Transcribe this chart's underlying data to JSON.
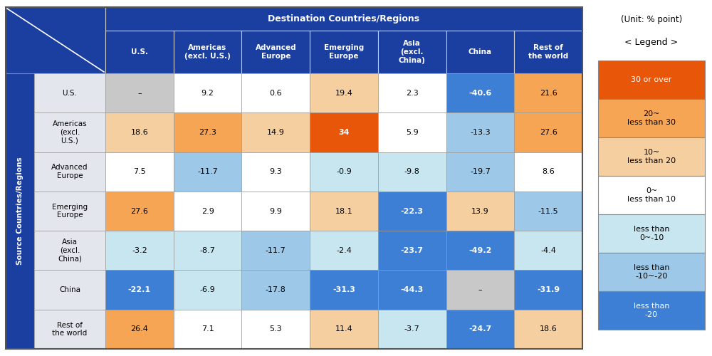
{
  "row_labels": [
    "U.S.",
    "Americas\n(excl.\nU.S.)",
    "Advanced\nEurope",
    "Emerging\nEurope",
    "Asia\n(excl.\nChina)",
    "China",
    "Rest of\nthe world"
  ],
  "col_labels": [
    "U.S.",
    "Americas\n(excl. U.S.)",
    "Advanced\nEurope",
    "Emerging\nEurope",
    "Asia\n(excl.\nChina)",
    "China",
    "Rest of\nthe world"
  ],
  "values": [
    [
      null,
      9.2,
      0.6,
      19.4,
      2.3,
      -40.6,
      21.6
    ],
    [
      18.6,
      27.3,
      14.9,
      34.0,
      5.9,
      -13.3,
      27.6
    ],
    [
      7.5,
      -11.7,
      9.3,
      -0.9,
      -9.8,
      -19.7,
      8.6
    ],
    [
      27.6,
      2.9,
      9.9,
      18.1,
      -22.3,
      13.9,
      -11.5
    ],
    [
      -3.2,
      -8.7,
      -11.7,
      -2.4,
      -23.7,
      -49.2,
      -4.4
    ],
    [
      -22.1,
      -6.9,
      -17.8,
      -31.3,
      -44.3,
      null,
      -31.9
    ],
    [
      26.4,
      7.1,
      5.3,
      11.4,
      -3.7,
      -24.7,
      18.6
    ]
  ],
  "display_values": [
    [
      "–",
      "9.2",
      "0.6",
      "19.4",
      "2.3",
      "-40.6",
      "21.6"
    ],
    [
      "18.6",
      "27.3",
      "14.9",
      "34",
      "5.9",
      "-13.3",
      "27.6"
    ],
    [
      "7.5",
      "-11.7",
      "9.3",
      "-0.9",
      "-9.8",
      "-19.7",
      "8.6"
    ],
    [
      "27.6",
      "2.9",
      "9.9",
      "18.1",
      "-22.3",
      "13.9",
      "-11.5"
    ],
    [
      "-3.2",
      "-8.7",
      "-11.7",
      "-2.4",
      "-23.7",
      "-49.2",
      "-4.4"
    ],
    [
      "-22.1",
      "-6.9",
      "-17.8",
      "-31.3",
      "-44.3",
      "–",
      "-31.9"
    ],
    [
      "26.4",
      "7.1",
      "5.3",
      "11.4",
      "-3.7",
      "-24.7",
      "18.6"
    ]
  ],
  "color_30_over": "#E8560A",
  "color_20_30": "#F5A553",
  "color_10_20": "#F5CFA0",
  "color_0_10": "#FFFFFF",
  "color_neg0_10": "#C8E6F0",
  "color_neg10_20": "#9DC8E8",
  "color_neg20_below": "#3D7FD4",
  "color_null": "#C8C8C8",
  "header_bg": "#1B3FA0",
  "header_text": "#FFFFFF",
  "row_header_bg": "#E4E6EE",
  "source_label_bg": "#1B3FA0",
  "source_label_text": "#FFFFFF",
  "border_color": "#555555",
  "cell_border": "#888888",
  "title_dest": "Destination Countries/Regions",
  "title_source": "Source Countries/Regions",
  "unit_text": "(Unit: % point)",
  "legend_title": "< Legend >",
  "legend_labels": [
    "30 or over",
    "20~\nless than 30",
    "10~\nless than 20",
    "0~\nless than 10",
    "less than\n0~-10",
    "less than\n-10~-20",
    "less than\n-20"
  ]
}
